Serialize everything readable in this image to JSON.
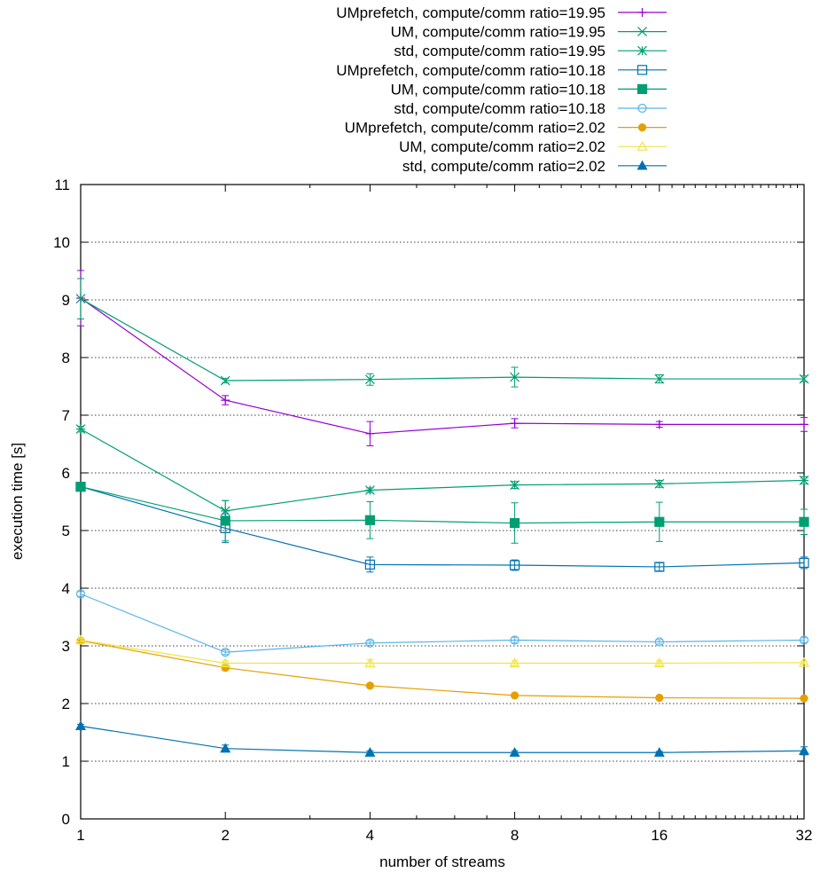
{
  "chart_data": {
    "type": "line",
    "x_scale": "log2",
    "x": [
      1,
      2,
      4,
      8,
      16,
      32
    ],
    "x_tick_labels": [
      "1",
      "2",
      "4",
      "8",
      "16",
      "32"
    ],
    "y_ticks": [
      0,
      1,
      2,
      3,
      4,
      5,
      6,
      7,
      8,
      9,
      10,
      11
    ],
    "xlim": [
      1,
      32
    ],
    "ylim": [
      0,
      11
    ],
    "xlabel": "number of streams",
    "ylabel": "execution time [s]",
    "grid": "horizontal dotted",
    "legend_position": "top-right, above plot",
    "series": [
      {
        "name": "UMprefetch, compute/comm ratio=19.95",
        "color": "#9400d3",
        "marker": "plus",
        "values": [
          9.03,
          7.26,
          6.68,
          6.86,
          6.84,
          6.84
        ],
        "errors": [
          0.48,
          0.08,
          0.21,
          0.08,
          0.05,
          0.12
        ]
      },
      {
        "name": "UM, compute/comm ratio=19.95",
        "color": "#009e73",
        "marker": "cross",
        "values": [
          9.02,
          7.6,
          7.62,
          7.66,
          7.63,
          7.63
        ],
        "errors": [
          0.35,
          0.04,
          0.1,
          0.17,
          0.07,
          0.05
        ]
      },
      {
        "name": "std, compute/comm ratio=19.95",
        "color": "#009e73",
        "marker": "star",
        "values": [
          6.76,
          5.34,
          5.7,
          5.79,
          5.81,
          5.87
        ],
        "errors": [
          0.05,
          0.18,
          0.04,
          0.06,
          0.06,
          0.06
        ]
      },
      {
        "name": "UMprefetch, compute/comm ratio=10.18",
        "color": "#0072b2",
        "marker": "box",
        "values": [
          5.76,
          5.04,
          4.41,
          4.4,
          4.37,
          4.44
        ],
        "errors": [
          0.05,
          0.25,
          0.13,
          0.09,
          0.07,
          0.1
        ]
      },
      {
        "name": "UM, compute/comm ratio=10.18",
        "color": "#009e73",
        "marker": "filled-box",
        "values": [
          5.76,
          5.17,
          5.18,
          5.13,
          5.15,
          5.15
        ],
        "errors": [
          0.05,
          0.35,
          0.32,
          0.35,
          0.34,
          0.22
        ]
      },
      {
        "name": "std, compute/comm ratio=10.18",
        "color": "#56b4e9",
        "marker": "circle",
        "values": [
          3.9,
          2.89,
          3.05,
          3.1,
          3.07,
          3.1
        ],
        "errors": [
          0.04,
          0.04,
          0.04,
          0.05,
          0.04,
          0.04
        ]
      },
      {
        "name": "UMprefetch, compute/comm ratio=2.02",
        "color": "#e69f00",
        "marker": "filled-circle",
        "values": [
          3.09,
          2.62,
          2.31,
          2.14,
          2.1,
          2.09
        ],
        "errors": [
          0.03,
          0.04,
          0.03,
          0.02,
          0.02,
          0.02
        ]
      },
      {
        "name": "UM, compute/comm ratio=2.02",
        "color": "#f0e442",
        "marker": "triangle",
        "values": [
          3.1,
          2.7,
          2.7,
          2.7,
          2.7,
          2.71
        ],
        "errors": [
          0.03,
          0.04,
          0.06,
          0.04,
          0.04,
          0.03
        ]
      },
      {
        "name": "std, compute/comm ratio=2.02",
        "color": "#0072b2",
        "marker": "filled-triangle",
        "values": [
          1.61,
          1.22,
          1.15,
          1.15,
          1.15,
          1.18
        ],
        "errors": [
          0.03,
          0.06,
          0.03,
          0.03,
          0.02,
          0.07
        ]
      }
    ]
  }
}
